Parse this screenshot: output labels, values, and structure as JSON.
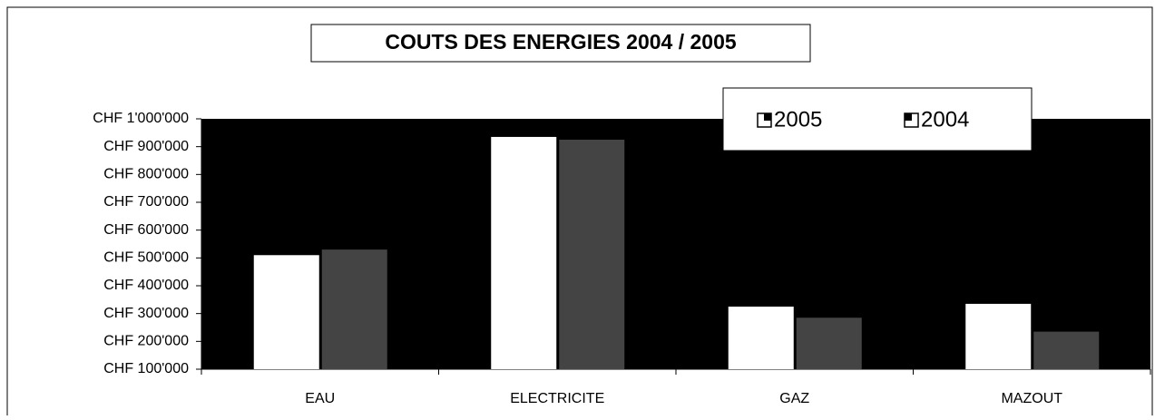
{
  "chart_data": {
    "type": "bar",
    "title": "COUTS DES ENERGIES 2004 / 2005",
    "categories": [
      "EAU",
      "ELECTRICITE",
      "GAZ",
      "MAZOUT"
    ],
    "series": [
      {
        "name": "2005",
        "color": "#ffffff",
        "values": [
          510000,
          935000,
          325000,
          335000
        ]
      },
      {
        "name": "2004",
        "color": "#444444",
        "values": [
          530000,
          925000,
          285000,
          235000
        ]
      }
    ],
    "ylim": [
      100000,
      1000000
    ],
    "yticks": [
      {
        "value": 100000,
        "label": "CHF  100'000"
      },
      {
        "value": 200000,
        "label": "CHF  200'000"
      },
      {
        "value": 300000,
        "label": "CHF  300'000"
      },
      {
        "value": 400000,
        "label": "CHF  400'000"
      },
      {
        "value": 500000,
        "label": "CHF  500'000"
      },
      {
        "value": 600000,
        "label": "CHF  600'000"
      },
      {
        "value": 700000,
        "label": "CHF  700'000"
      },
      {
        "value": 800000,
        "label": "CHF  800'000"
      },
      {
        "value": 900000,
        "label": "CHF  900'000"
      },
      {
        "value": 1000000,
        "label": "CHF  1'000'000"
      }
    ],
    "plot_background": "#000000",
    "legend": "top-right"
  }
}
